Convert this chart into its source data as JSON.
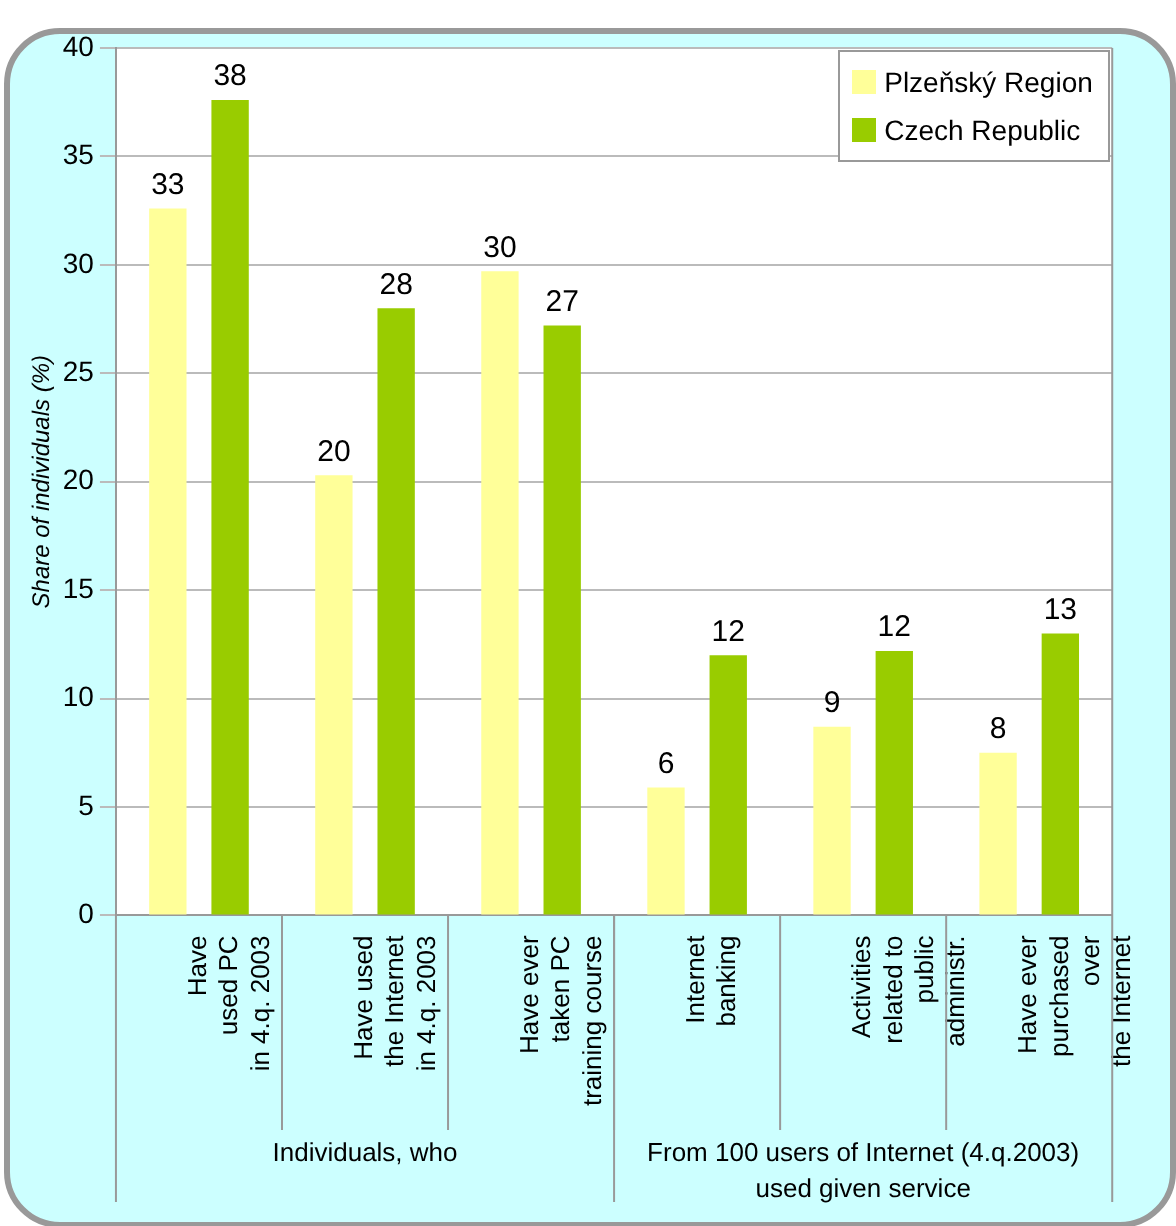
{
  "chart_data": {
    "type": "bar",
    "categories": [
      "Have\nused PC\nin 4.q. 2003",
      "Have used\nthe Internet\nin 4.q. 2003",
      "Have ever\ntaken PC\ntraining course",
      "Internet\nbanking",
      "Activities\nrelated to\npublic\nadministr.",
      "Have ever\npurchased\nover\nthe Internet"
    ],
    "series": [
      {
        "name": "Plzeňský Region",
        "color": "#ffff99",
        "values": [
          32.6,
          20.3,
          29.7,
          5.9,
          8.7,
          7.5
        ],
        "value_labels": [
          "33",
          "20",
          "30",
          "6",
          "9",
          "8"
        ]
      },
      {
        "name": "Czech Republic",
        "color": "#99cc00",
        "values": [
          37.6,
          28.0,
          27.2,
          12.0,
          12.2,
          13.0
        ],
        "value_labels": [
          "38",
          "28",
          "27",
          "12",
          "12",
          "13"
        ]
      }
    ],
    "ylabel": "Share of individuals (%)",
    "ylim": [
      0,
      40
    ],
    "yticks": [
      0,
      5,
      10,
      15,
      20,
      25,
      30,
      35,
      40
    ],
    "grid": "y",
    "legend": "top right",
    "annotations": [
      "Individuals, who",
      "From 100 users of Internet (4.q.2003)\nused given service"
    ]
  }
}
